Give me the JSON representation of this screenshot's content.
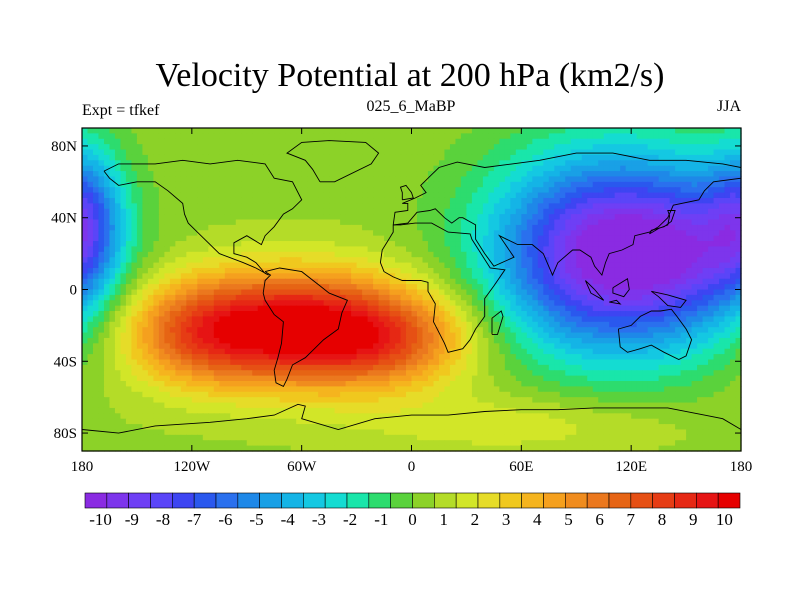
{
  "chart_data": {
    "type": "heatmap",
    "title": "Velocity Potential at 200 hPa (km2/s)",
    "left_string": "Expt = tfkef",
    "center_string": "025_6_MaBP",
    "right_string": "JJA",
    "x_range": [
      -180,
      180
    ],
    "y_range": [
      -90,
      90
    ],
    "x_ticks": [
      {
        "value": -180,
        "label": "180"
      },
      {
        "value": -120,
        "label": "120W"
      },
      {
        "value": -60,
        "label": "60W"
      },
      {
        "value": 0,
        "label": "0"
      },
      {
        "value": 60,
        "label": "60E"
      },
      {
        "value": 120,
        "label": "120E"
      },
      {
        "value": 180,
        "label": "180"
      }
    ],
    "y_ticks": [
      {
        "value": 80,
        "label": "80N"
      },
      {
        "value": 40,
        "label": "40N"
      },
      {
        "value": 0,
        "label": "0"
      },
      {
        "value": -40,
        "label": "40S"
      },
      {
        "value": -80,
        "label": "80S"
      }
    ],
    "colorbar": {
      "min": -10.5,
      "max": 10.5,
      "labels": [
        -10,
        -9,
        -8,
        -7,
        -6,
        -5,
        -4,
        -3,
        -2,
        -1,
        0,
        1,
        2,
        3,
        4,
        5,
        6,
        7,
        8,
        9,
        10
      ],
      "colors": [
        "#8a2be2",
        "#7d35ec",
        "#6e3ff5",
        "#5a45f8",
        "#3d45f2",
        "#2a58ee",
        "#2a70ee",
        "#1e88e8",
        "#19a0e6",
        "#14b4e6",
        "#14c8e2",
        "#14dcd2",
        "#19e6aa",
        "#2ddc6e",
        "#5ad23c",
        "#8cd228",
        "#b4dc28",
        "#d2e628",
        "#e6dc28",
        "#f0c81e",
        "#f5b41e",
        "#f5a01e",
        "#f08c1e",
        "#eb781e",
        "#e66414",
        "#e65014",
        "#e63c14",
        "#e62814",
        "#e61414",
        "#e60000"
      ]
    },
    "centers": [
      {
        "lon": -65,
        "lat": -22,
        "sx": 50,
        "sy": 22,
        "amp": 10.5
      },
      {
        "lon": -10,
        "lat": -30,
        "sx": 30,
        "sy": 18,
        "amp": 3.0
      },
      {
        "lon": -120,
        "lat": -25,
        "sx": 25,
        "sy": 20,
        "amp": 2.5
      },
      {
        "lon": 110,
        "lat": 20,
        "sx": 45,
        "sy": 38,
        "amp": -11.5
      },
      {
        "lon": 160,
        "lat": 20,
        "sx": 25,
        "sy": 30,
        "amp": -3.0
      },
      {
        "lon": -178,
        "lat": 40,
        "sx": 14,
        "sy": 28,
        "amp": -5.0
      },
      {
        "lon": 60,
        "lat": -75,
        "sx": 60,
        "sy": 12,
        "amp": 1.5
      }
    ],
    "background": 0.5,
    "grid": false
  }
}
